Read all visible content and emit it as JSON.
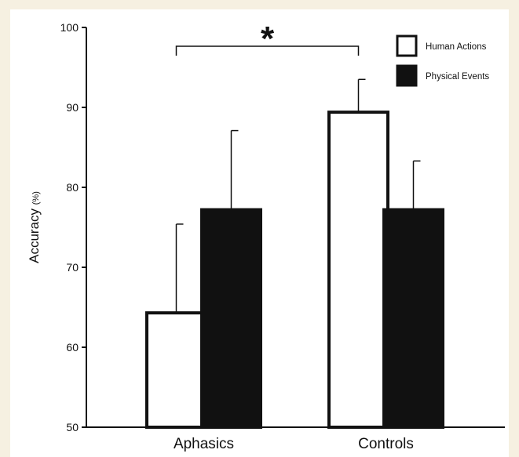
{
  "chart_data": {
    "type": "bar",
    "ylabel": "Accuracy",
    "ylabel_unit": "(%)",
    "categories": [
      "Aphasics",
      "Controls"
    ],
    "ylim": [
      50,
      100
    ],
    "yticks": [
      "50",
      "60",
      "70",
      "80",
      "90",
      "100"
    ],
    "series": [
      {
        "name": "Human Actions",
        "values": [
          64.3,
          89.4
        ],
        "error": [
          11.1,
          4.1
        ],
        "fill": "#ffffff",
        "stroke": "#111111"
      },
      {
        "name": "Physical Events",
        "values": [
          77.2,
          77.2
        ],
        "error": [
          9.9,
          6.1
        ],
        "fill": "#111111",
        "stroke": "#111111"
      }
    ],
    "annotation": {
      "text": "*",
      "between": [
        "Aphasics: Human Actions",
        "Controls: Human Actions"
      ]
    },
    "legend_position": "top-right",
    "grid": false
  }
}
